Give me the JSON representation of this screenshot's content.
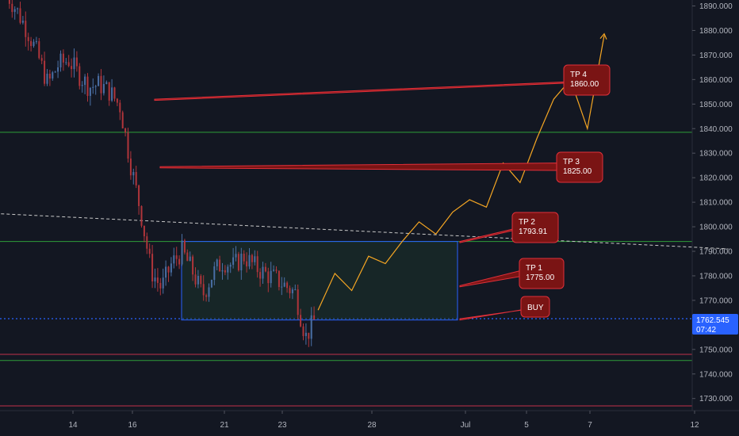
{
  "colors": {
    "background": "#131722",
    "axis_text": "#b2b5be",
    "candle_up": "#4a6fa5",
    "candle_down": "#b0353b",
    "target_fill": "#7a1414",
    "target_stroke": "#e0303a",
    "projection": "#f5a623",
    "green_level": "#2e9e3a",
    "red_level": "#c0304a",
    "box_stroke": "#2962ff",
    "box_fill": "#1d3a2e",
    "current_price": "#2962ff",
    "trendline": "#c8c8c8"
  },
  "chart_data": {
    "type": "candlestick",
    "instrument_hint": "gold",
    "x_axis": {
      "labels": [
        "14",
        "16",
        "21",
        "23",
        "28",
        "Jul",
        "5",
        "7",
        "12"
      ],
      "units": "day-of-month (June, then July)"
    },
    "y_axis": {
      "range": [
        1722,
        1893
      ],
      "ticks": [
        "1730.000",
        "1740.000",
        "1750.000",
        "1760.000",
        "1770.000",
        "1780.000",
        "1790.000",
        "1800.000",
        "1810.000",
        "1820.000",
        "1830.000",
        "1840.000",
        "1850.000",
        "1860.000",
        "1870.000",
        "1880.000",
        "1890.000"
      ]
    },
    "price_path": [
      {
        "d": 0,
        "p": 1895
      },
      {
        "d": 1,
        "p": 1888
      },
      {
        "d": 2,
        "p": 1880
      },
      {
        "d": 3,
        "p": 1870
      },
      {
        "d": 4,
        "p": 1858
      },
      {
        "d": 5,
        "p": 1866
      },
      {
        "d": 6,
        "p": 1868
      },
      {
        "d": 7,
        "p": 1862
      },
      {
        "d": 8,
        "p": 1857
      },
      {
        "d": 9,
        "p": 1858
      },
      {
        "d": 10,
        "p": 1855
      },
      {
        "d": 11,
        "p": 1849
      },
      {
        "d": 12,
        "p": 1826
      },
      {
        "d": 13,
        "p": 1806
      },
      {
        "d": 14,
        "p": 1782
      },
      {
        "d": 15,
        "p": 1775
      },
      {
        "d": 16,
        "p": 1785
      },
      {
        "d": 17,
        "p": 1790
      },
      {
        "d": 18,
        "p": 1782
      },
      {
        "d": 19,
        "p": 1772
      },
      {
        "d": 20,
        "p": 1781
      },
      {
        "d": 21,
        "p": 1786
      },
      {
        "d": 22,
        "p": 1784
      },
      {
        "d": 23,
        "p": 1788
      },
      {
        "d": 24,
        "p": 1784
      },
      {
        "d": 25,
        "p": 1781
      },
      {
        "d": 26,
        "p": 1779
      },
      {
        "d": 27,
        "p": 1776
      },
      {
        "d": 28,
        "p": 1773
      },
      {
        "d": 29,
        "p": 1755
      },
      {
        "d": 30,
        "p": 1763
      }
    ],
    "levels": {
      "green": [
        1838.5,
        1794,
        1745.5
      ],
      "red": [
        1748,
        1727
      ]
    },
    "current_price": {
      "value": "1762.545",
      "timer": "07:42"
    },
    "range_box": {
      "from_price": 1762,
      "to_price": 1794
    },
    "trendline": {
      "from": {
        "d": -14,
        "p": 1808
      },
      "to": {
        "d": 70,
        "p": 1791
      }
    },
    "projection": [
      1766,
      1781,
      1774,
      1788,
      1785,
      1794,
      1802,
      1797,
      1806,
      1811,
      1808,
      1826,
      1818,
      1836,
      1852,
      1860,
      1840,
      1878
    ],
    "targets": [
      {
        "label": "TP 4",
        "value": "1860.00",
        "from_price": 1852,
        "to_price": 1859
      },
      {
        "label": "TP 3",
        "value": "1825.00",
        "from_price": 1824.5,
        "to_price": 1826
      },
      {
        "label": "TP 2",
        "value": "1793.91",
        "from_price": 1794,
        "to_price": 1799
      },
      {
        "label": "TP 1",
        "value": "1775.00",
        "from_price": 1776,
        "to_price": 1782
      },
      {
        "label": "BUY",
        "value": "",
        "from_price": 1762.5,
        "to_price": 1766
      }
    ]
  }
}
